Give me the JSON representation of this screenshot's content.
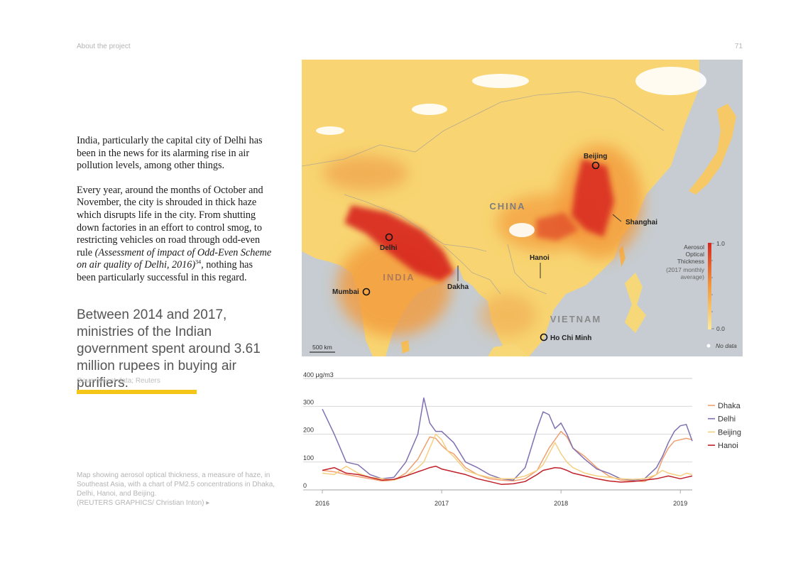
{
  "header": {
    "running_title": "About the project",
    "page_number": "71"
  },
  "body": {
    "para1": "India, particularly the capital city of Delhi has been in the news for its alarming rise in air pollution levels, among other things.",
    "para2_a": "Every year, around the months of October and November, the city is shrouded in thick haze which disrupts life in the city. From shutting down factories in an effort to control smog, to restricting vehicles on road through odd-even rule ",
    "para2_citation": "(Assessment of impact of Odd-Even Scheme on air quality of Delhi, 2016)",
    "para2_footnote": "34",
    "para2_b": ", nothing has been particularly successful in this regard."
  },
  "pull_quote": {
    "text": "Between 2014 and 2017, ministries of the Indian government spent around 3.61 million rupees in buying air purifiers.",
    "source": "Government data; Reuters",
    "accent_color": "#f5c518"
  },
  "caption": {
    "text": "Map showing aerosol optical thickness, a measure of haze, in Southeast Asia, with a chart of PM2.5 concentrations in Dhaka, Delhi, Hanoi, and Beijing.",
    "credit": "(REUTERS GRAPHICS/ Christian Inton) ▸"
  },
  "map": {
    "countries": {
      "china": "CHINA",
      "india": "INDIA",
      "vietnam": "VIETNAM"
    },
    "cities": {
      "beijing": "Beijing",
      "shanghai": "Shanghai",
      "delhi": "Delhi",
      "hanoi": "Hanoi",
      "dakha": "Dakha",
      "mumbai": "Mumbai",
      "ho_chi_minh": "Ho Chi Minh"
    },
    "legend": {
      "title_1": "Aerosol",
      "title_2": "Optical",
      "title_3": "Thickness",
      "subtitle_1": "(2017 monthly",
      "subtitle_2": "average)",
      "max": "1.0",
      "min": "0.0",
      "no_data": "No data"
    },
    "scale": "500 km",
    "colors": {
      "water": "#c6ccd1",
      "low": "#f9e17f",
      "mid": "#f39a3c",
      "high": "#d7261e"
    }
  },
  "chart_data": {
    "type": "line",
    "unit_label": "400 μg/m3",
    "x": [
      2016.0,
      2016.1,
      2016.2,
      2016.3,
      2016.4,
      2016.5,
      2016.6,
      2016.7,
      2016.8,
      2016.85,
      2016.9,
      2016.95,
      2017.0,
      2017.05,
      2017.1,
      2017.2,
      2017.3,
      2017.4,
      2017.5,
      2017.6,
      2017.7,
      2017.8,
      2017.85,
      2017.9,
      2017.95,
      2018.0,
      2018.05,
      2018.1,
      2018.2,
      2018.3,
      2018.4,
      2018.5,
      2018.6,
      2018.7,
      2018.8,
      2018.85,
      2018.9,
      2018.95,
      2019.0,
      2019.05,
      2019.1
    ],
    "xlim": [
      2016.0,
      2019.1
    ],
    "ylim": [
      0,
      400
    ],
    "yticks": [
      0,
      100,
      200,
      300
    ],
    "xticks": [
      "2016",
      "2017",
      "2018",
      "2019"
    ],
    "series": [
      {
        "name": "Dhaka",
        "color": "#f0a070",
        "values": [
          70,
          65,
          55,
          48,
          40,
          32,
          35,
          60,
          110,
          150,
          190,
          185,
          160,
          140,
          130,
          80,
          55,
          40,
          35,
          32,
          40,
          70,
          110,
          150,
          180,
          210,
          190,
          150,
          120,
          80,
          50,
          35,
          32,
          30,
          55,
          110,
          150,
          175,
          180,
          185,
          180
        ]
      },
      {
        "name": "Delhi",
        "color": "#8070b0",
        "values": [
          290,
          200,
          100,
          90,
          55,
          40,
          45,
          100,
          200,
          330,
          240,
          210,
          210,
          190,
          170,
          100,
          80,
          55,
          40,
          35,
          80,
          220,
          280,
          270,
          220,
          240,
          200,
          150,
          110,
          75,
          60,
          40,
          35,
          40,
          80,
          120,
          170,
          210,
          230,
          235,
          175
        ]
      },
      {
        "name": "Beijing",
        "color": "#f5d080",
        "values": [
          60,
          55,
          85,
          60,
          45,
          40,
          35,
          50,
          80,
          100,
          150,
          200,
          180,
          140,
          120,
          70,
          55,
          45,
          40,
          40,
          50,
          70,
          90,
          130,
          170,
          130,
          100,
          80,
          60,
          50,
          45,
          40,
          38,
          40,
          55,
          70,
          60,
          55,
          50,
          60,
          55
        ]
      },
      {
        "name": "Hanoi",
        "color": "#c0202a",
        "values": [
          70,
          80,
          60,
          55,
          45,
          35,
          38,
          50,
          65,
          72,
          80,
          85,
          75,
          70,
          65,
          55,
          40,
          30,
          20,
          22,
          30,
          55,
          70,
          75,
          80,
          78,
          70,
          60,
          50,
          40,
          32,
          28,
          30,
          35,
          40,
          45,
          50,
          45,
          40,
          45,
          50
        ]
      }
    ]
  }
}
